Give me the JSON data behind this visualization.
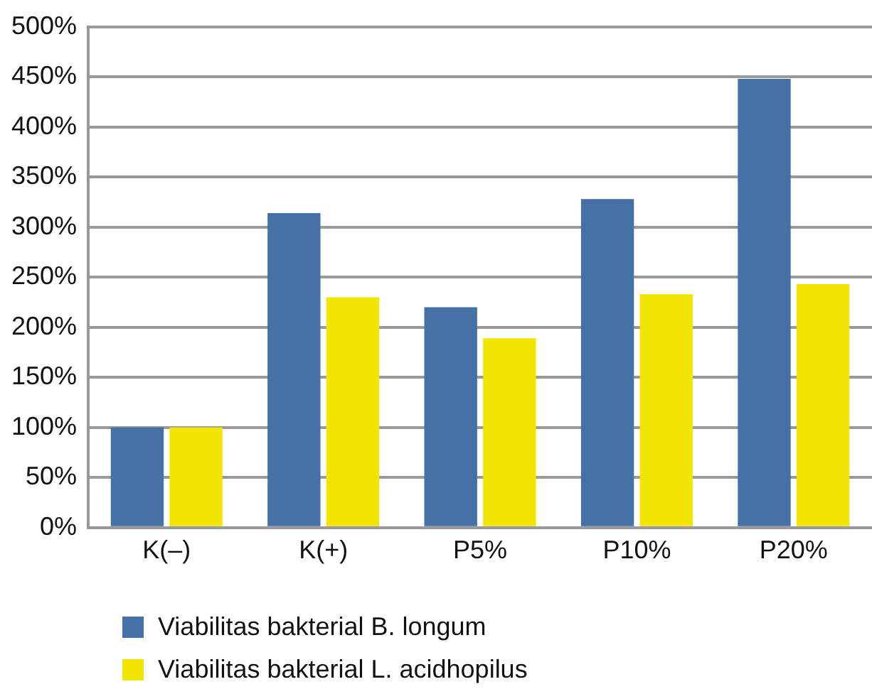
{
  "chart_data": {
    "type": "bar",
    "categories": [
      "K(–)",
      "K(+)",
      "P5%",
      "P10%",
      "P20%"
    ],
    "series": [
      {
        "name": "Viabilitas bakterial B. longum",
        "color": "#4571a7",
        "values": [
          100,
          314,
          220,
          328,
          448
        ]
      },
      {
        "name": "Viabilitas bakterial L. acidhopilus",
        "color": "#f2e500",
        "values": [
          100,
          230,
          189,
          233,
          243
        ]
      }
    ],
    "ylim": [
      0,
      500
    ],
    "yticks": [
      {
        "value": 0,
        "label": "0%"
      },
      {
        "value": 50,
        "label": "50%"
      },
      {
        "value": 100,
        "label": "100%"
      },
      {
        "value": 150,
        "label": "150%"
      },
      {
        "value": 200,
        "label": "200%"
      },
      {
        "value": 250,
        "label": "250%"
      },
      {
        "value": 300,
        "label": "300%"
      },
      {
        "value": 350,
        "label": "350%"
      },
      {
        "value": 400,
        "label": "400%"
      },
      {
        "value": 450,
        "label": "450%"
      },
      {
        "value": 500,
        "label": "500%"
      }
    ],
    "grid": "y",
    "legend": "bottom"
  }
}
